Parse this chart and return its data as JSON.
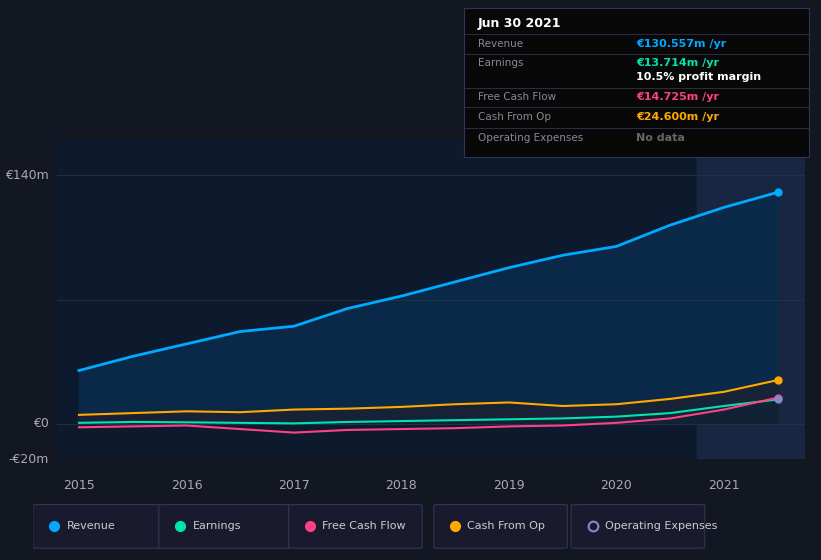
{
  "background_color": "#131722",
  "plot_area_bg": "#0d1a2e",
  "highlight_bg": "#1a2744",
  "grid_color": "#2a3550",
  "years": [
    2015.0,
    2015.5,
    2016.0,
    2016.5,
    2017.0,
    2017.5,
    2018.0,
    2018.5,
    2019.0,
    2019.5,
    2020.0,
    2020.5,
    2021.0,
    2021.5
  ],
  "revenue": [
    30,
    38,
    45,
    52,
    55,
    65,
    72,
    80,
    88,
    95,
    100,
    112,
    122,
    130.5
  ],
  "earnings": [
    0.5,
    1.0,
    0.8,
    0.5,
    0.2,
    1.0,
    1.5,
    2.0,
    2.5,
    3.0,
    4.0,
    6.0,
    10.0,
    13.7
  ],
  "free_cash_flow": [
    -2.0,
    -1.5,
    -1.0,
    -3.0,
    -5.0,
    -3.5,
    -3.0,
    -2.5,
    -1.5,
    -1.0,
    0.5,
    3.0,
    8.0,
    14.7
  ],
  "cash_from_op": [
    5.0,
    6.0,
    7.0,
    6.5,
    8.0,
    8.5,
    9.5,
    11.0,
    12.0,
    10.0,
    11.0,
    14.0,
    18.0,
    24.6
  ],
  "revenue_color": "#00aaff",
  "earnings_color": "#00e5b0",
  "fcf_color": "#ff4081",
  "cashop_color": "#ffaa00",
  "opex_color": "#8888cc",
  "revenue_fill": "#0a2a4a",
  "cashop_fill": "#1a2233",
  "earnings_fill": "#0d2233",
  "ylim_min": -20,
  "ylim_max": 160,
  "xlim_min": 2014.8,
  "xlim_max": 2021.75,
  "xtick_values": [
    2015,
    2016,
    2017,
    2018,
    2019,
    2020,
    2021
  ],
  "highlight_x_start": 2020.75,
  "highlight_x_end": 2021.75,
  "info_title": "Jun 30 2021",
  "info_rows": [
    {
      "label": "Revenue",
      "value": "€130.557m /yr",
      "value_color": "#00aaff",
      "label_color": "#888899"
    },
    {
      "label": "Earnings",
      "value": "€13.714m /yr",
      "value_color": "#00e5b0",
      "label_color": "#888899"
    },
    {
      "label": "",
      "value": "10.5% profit margin",
      "value_color": "#ffffff",
      "label_color": "#888899"
    },
    {
      "label": "Free Cash Flow",
      "value": "€14.725m /yr",
      "value_color": "#ff4081",
      "label_color": "#888899"
    },
    {
      "label": "Cash From Op",
      "value": "€24.600m /yr",
      "value_color": "#ffaa00",
      "label_color": "#888899"
    },
    {
      "label": "Operating Expenses",
      "value": "No data",
      "value_color": "#666666",
      "label_color": "#888899"
    }
  ],
  "legend_items": [
    {
      "label": "Revenue",
      "color": "#00aaff",
      "filled": true
    },
    {
      "label": "Earnings",
      "color": "#00e5b0",
      "filled": true
    },
    {
      "label": "Free Cash Flow",
      "color": "#ff4081",
      "filled": true
    },
    {
      "label": "Cash From Op",
      "color": "#ffaa00",
      "filled": true
    },
    {
      "label": "Operating Expenses",
      "color": "#8888cc",
      "filled": false
    }
  ]
}
